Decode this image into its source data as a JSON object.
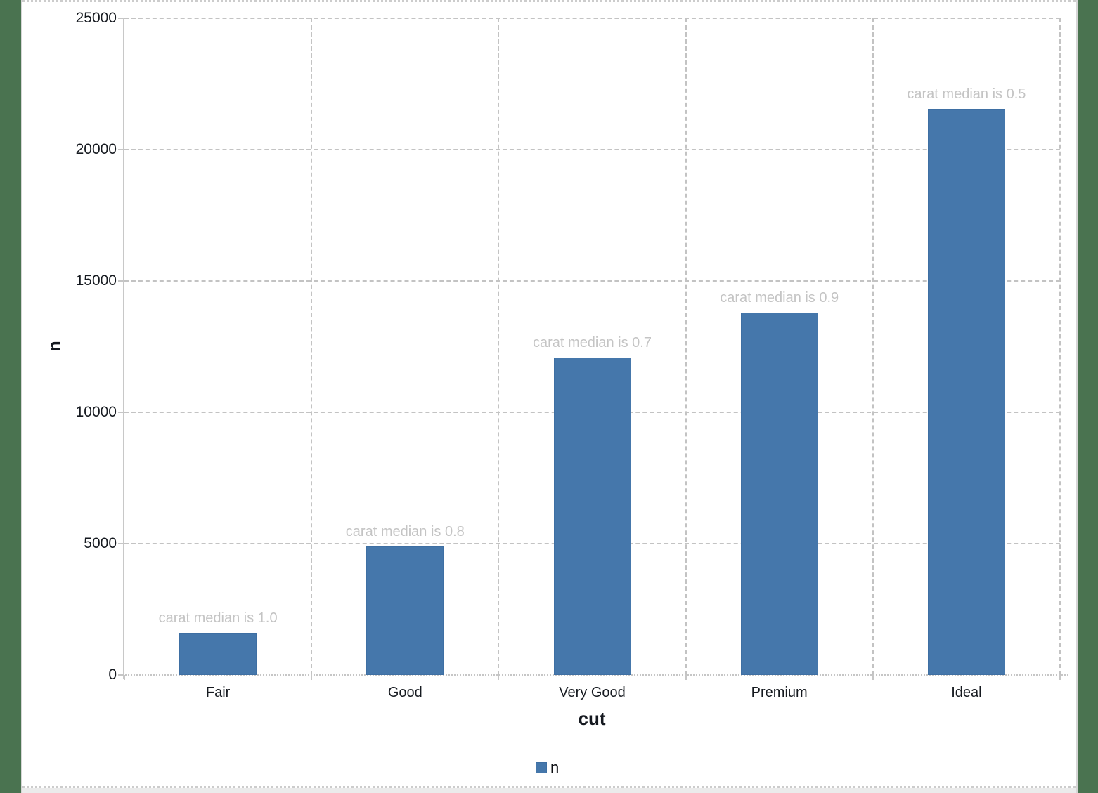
{
  "window": {
    "side_background_color": "#4A7350",
    "canvas_color": "#ffffff"
  },
  "chart_data": {
    "type": "bar",
    "title": "",
    "categories": [
      "Fair",
      "Good",
      "Very Good",
      "Premium",
      "Ideal"
    ],
    "series": [
      {
        "name": "n",
        "values": [
          1610,
          4906,
          12082,
          13791,
          21551
        ]
      }
    ],
    "annotations": [
      "carat median is 1.0",
      "carat median is 0.8",
      "carat median is 0.7",
      "carat median is 0.9",
      "carat median is 0.5"
    ],
    "xlabel": "cut",
    "ylabel": "n",
    "ylim": [
      0,
      25000
    ],
    "yticks": [
      0,
      5000,
      10000,
      15000,
      20000,
      25000
    ],
    "grid": "dashed",
    "bar_color": "#4577AB",
    "annotation_color": "#C4C4C4",
    "legend": {
      "position": "bottom",
      "entries": [
        {
          "label": "n",
          "color": "#4577AB"
        }
      ]
    }
  }
}
